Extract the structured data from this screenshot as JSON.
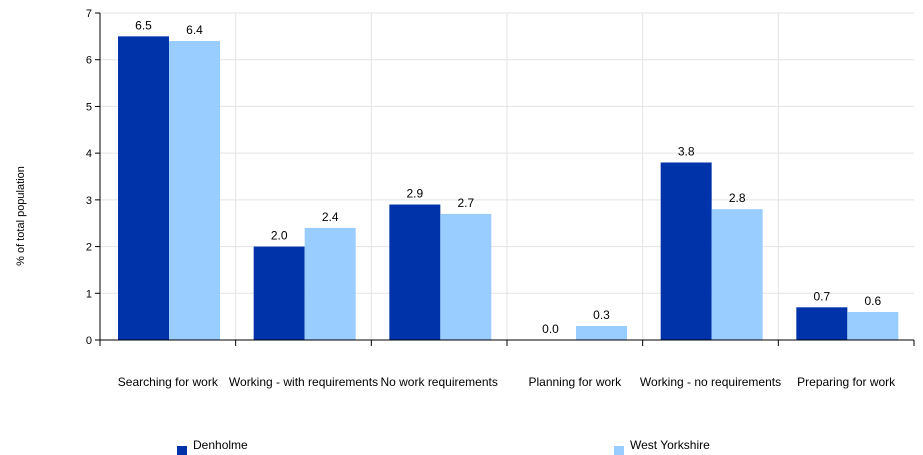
{
  "chart_data": {
    "type": "bar",
    "categories": [
      "Searching for work",
      "Working - with requirements",
      "No work requirements",
      "Planning for work",
      "Working - no requirements",
      "Preparing for work"
    ],
    "series": [
      {
        "name": "Denholme",
        "values": [
          6.5,
          2.0,
          2.9,
          0.0,
          3.8,
          0.7
        ],
        "labels": [
          "6.5",
          "2.0",
          "2.9",
          "0.0",
          "3.8",
          "0.7"
        ],
        "color": "#0033AA"
      },
      {
        "name": "West Yorkshire",
        "values": [
          6.4,
          2.4,
          2.7,
          0.3,
          2.8,
          0.6
        ],
        "labels": [
          "6.4",
          "2.4",
          "2.7",
          "0.3",
          "2.8",
          "0.6"
        ],
        "color": "#99CCFF"
      }
    ],
    "title": "",
    "xlabel": "",
    "ylabel": "% of total population",
    "ylim": [
      0,
      7
    ],
    "yticks": [
      "0",
      "1",
      "2",
      "3",
      "4",
      "5",
      "6",
      "7"
    ],
    "grid": true,
    "legend_position": "bottom"
  }
}
